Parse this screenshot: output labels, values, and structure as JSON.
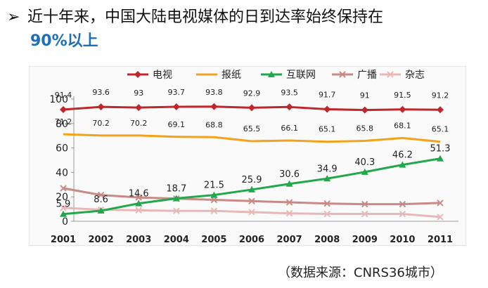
{
  "headline": {
    "bullet": "➢",
    "line1": "近十年来，中国大陆电视媒体的日到达率始终保持在",
    "line2": "90%以上"
  },
  "source": "（数据来源：CNRS36城市）",
  "chart_data": {
    "type": "line",
    "categories": [
      "2001",
      "2002",
      "2003",
      "2004",
      "2005",
      "2006",
      "2007",
      "2008",
      "2009",
      "2010",
      "2011"
    ],
    "ylim": [
      0,
      100
    ],
    "yticks": [
      0,
      20,
      40,
      60,
      80,
      100
    ],
    "grid": false,
    "legend_position": "top",
    "series": [
      {
        "name": "电视",
        "color": "#c0272d",
        "marker": "diamond",
        "labeled": true,
        "values": [
          91.4,
          93.6,
          93,
          93.7,
          93.8,
          92.9,
          93.5,
          91.7,
          91,
          91.5,
          91.2
        ]
      },
      {
        "name": "报纸",
        "color": "#f5a21b",
        "marker": "none",
        "labeled": true,
        "values": [
          71.2,
          70.2,
          70.2,
          69.1,
          68.8,
          65.5,
          66.1,
          65.1,
          65.8,
          68.1,
          65.1
        ]
      },
      {
        "name": "互联网",
        "color": "#20a84a",
        "marker": "triangle",
        "labeled": true,
        "values": [
          5.9,
          8.6,
          14.6,
          18.7,
          21.5,
          25.9,
          30.6,
          34.9,
          40.3,
          46.2,
          51.3
        ]
      },
      {
        "name": "广播",
        "color": "#c98a86",
        "marker": "x",
        "labeled": false,
        "values": [
          27,
          21.5,
          19.5,
          18.5,
          17.5,
          16.5,
          15.5,
          14.5,
          14,
          14,
          15
        ]
      },
      {
        "name": "杂志",
        "color": "#e8b8b8",
        "marker": "x",
        "labeled": false,
        "values": [
          11,
          9.5,
          9,
          8.5,
          8.5,
          7.5,
          6.5,
          6,
          6,
          6,
          3.5
        ]
      }
    ]
  }
}
